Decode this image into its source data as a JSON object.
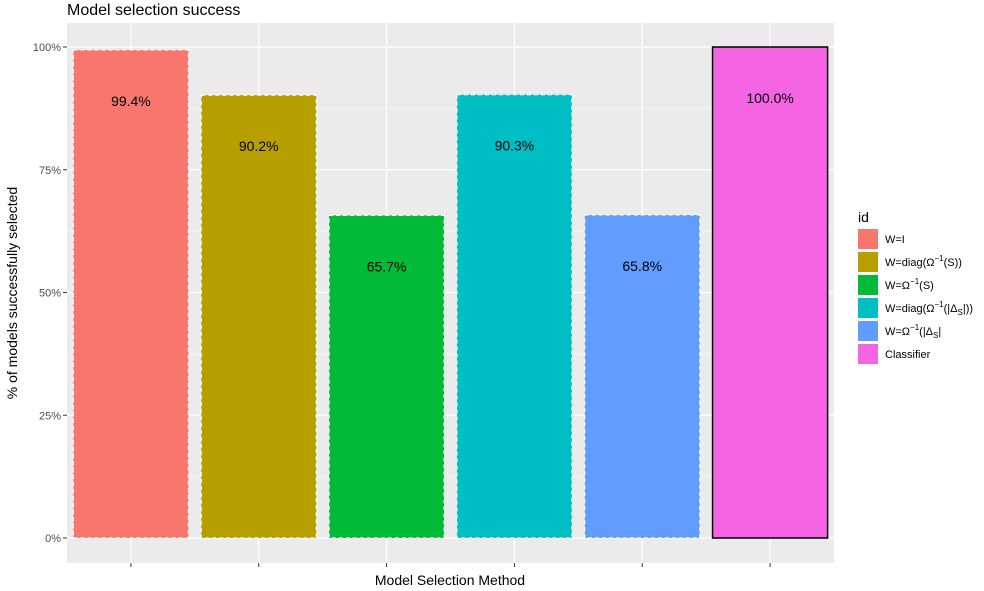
{
  "chart_data": {
    "type": "bar",
    "title": "Model selection success",
    "xlabel": "Model Selection Method",
    "ylabel": "% of models successfully selected",
    "ylim": [
      0,
      1.05
    ],
    "yticks": [
      0,
      0.25,
      0.5,
      0.75,
      1.0
    ],
    "ytick_labels": [
      "0%",
      "25%",
      "50%",
      "75%",
      "100%"
    ],
    "x_tick_labels": [
      "",
      "",
      "",
      "",
      "",
      ""
    ],
    "grid": true,
    "legend": {
      "title": "id",
      "position": "right",
      "entries": [
        {
          "main": "W=I",
          "sup": "",
          "sub": "",
          "tail": ""
        },
        {
          "main": "W=diag(Ω",
          "sup": "−1",
          "sub": "",
          "tail": "(S))"
        },
        {
          "main": "W=Ω",
          "sup": "−1",
          "sub": "",
          "tail": "(S)"
        },
        {
          "main": "W=diag(Ω",
          "sup": "−1",
          "pre_sub": "(|Δ",
          "sub": "S",
          "tail": "|))"
        },
        {
          "main": "W=Ω",
          "sup": "−1",
          "pre_sub": "(|Δ",
          "sub": "S",
          "tail": "|"
        },
        {
          "main": "Classifier",
          "sup": "",
          "sub": "",
          "tail": ""
        }
      ]
    },
    "categories": [
      "W=I",
      "W=diag(Ω^-1(S))",
      "W=Ω^-1(S)",
      "W=diag(Ω^-1(|Δ_S|))",
      "W=Ω^-1(|Δ_S|",
      "Classifier"
    ],
    "values": [
      0.994,
      0.902,
      0.657,
      0.903,
      0.658,
      1.0
    ],
    "data_labels": [
      "99.4%",
      "90.2%",
      "65.7%",
      "90.3%",
      "65.8%",
      "100.0%"
    ],
    "colors": [
      "#F8766D",
      "#B79F00",
      "#00BA38",
      "#00BFC4",
      "#619CFF",
      "#F564E3"
    ],
    "outline": [
      "dashed-white",
      "dashed-white",
      "dashed-white",
      "dashed-white",
      "dashed-white",
      "solid-black"
    ],
    "panel_background": "#EBEBEB",
    "grid_color": "#FFFFFF"
  }
}
